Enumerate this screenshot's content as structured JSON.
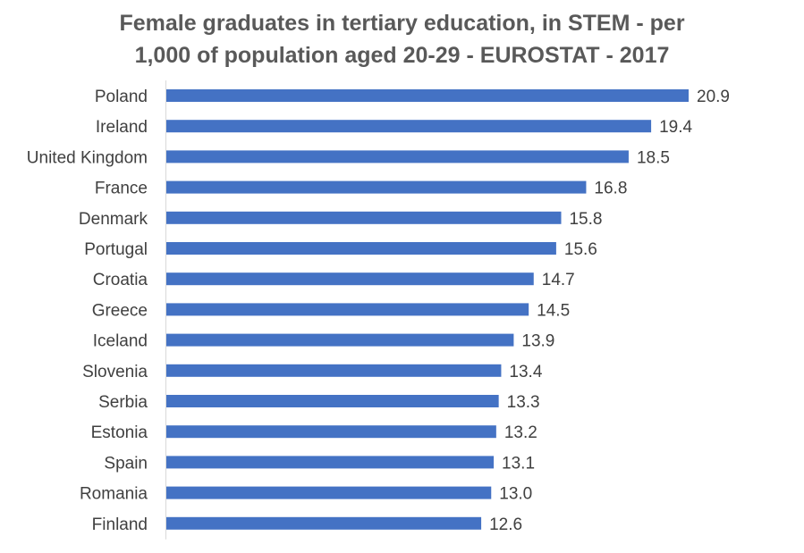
{
  "chart_data": {
    "type": "bar",
    "orientation": "horizontal",
    "title": "Female graduates in tertiary education, in STEM - per 1,000 of population aged 20-29 - EUROSTAT - 2017",
    "title_lines": [
      "Female graduates in tertiary education, in STEM - per",
      "1,000 of population aged 20-29 - EUROSTAT - 2017"
    ],
    "categories": [
      "Poland",
      "Ireland",
      "United Kingdom",
      "France",
      "Denmark",
      "Portugal",
      "Croatia",
      "Greece",
      "Iceland",
      "Slovenia",
      "Serbia",
      "Estonia",
      "Spain",
      "Romania",
      "Finland"
    ],
    "values": [
      20.9,
      19.4,
      18.5,
      16.8,
      15.8,
      15.6,
      14.7,
      14.5,
      13.9,
      13.4,
      13.3,
      13.2,
      13.1,
      13.0,
      12.6
    ],
    "value_labels": [
      "20.9",
      "19.4",
      "18.5",
      "16.8",
      "15.8",
      "15.6",
      "14.7",
      "14.5",
      "13.9",
      "13.4",
      "13.3",
      "13.2",
      "13.1",
      "13.0",
      "12.6"
    ],
    "xlabel": "",
    "ylabel": "",
    "xlim": [
      0,
      20.9
    ],
    "grid": false,
    "legend": "none",
    "bar_color": "#4472C4"
  }
}
